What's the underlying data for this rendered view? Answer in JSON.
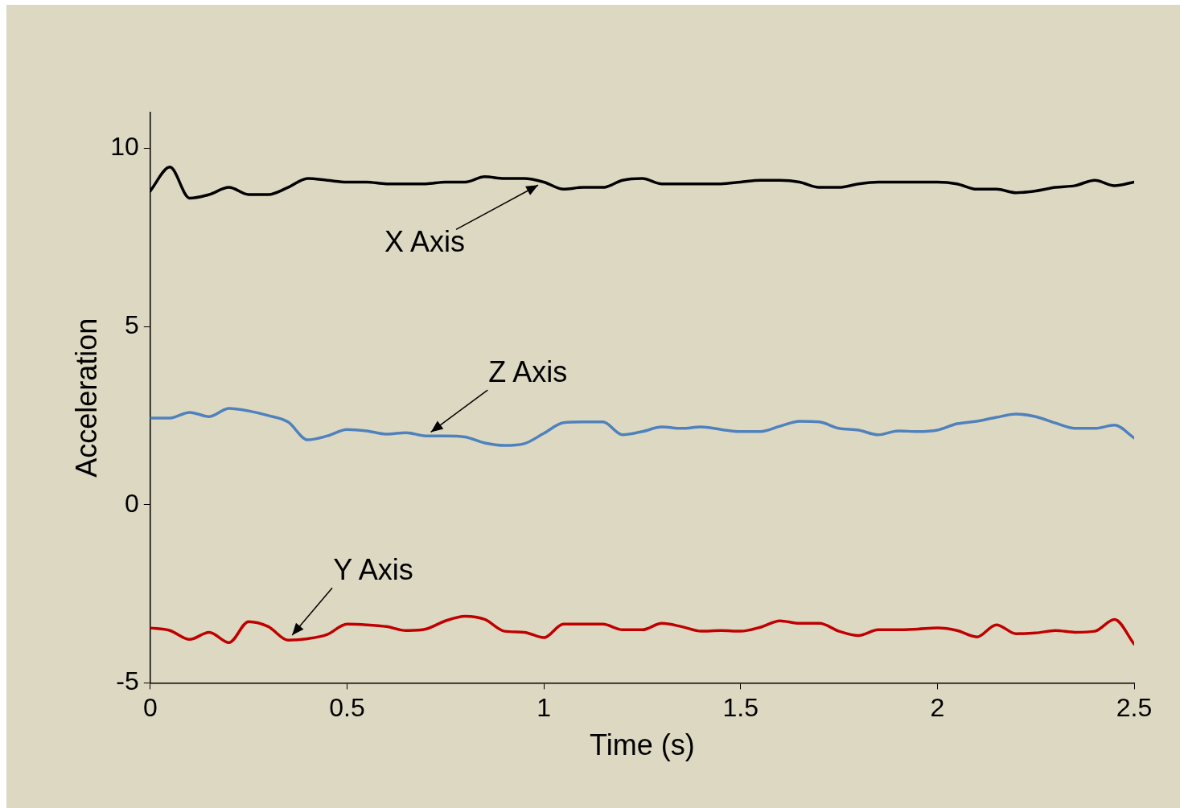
{
  "chart_data": {
    "type": "line",
    "xlabel": "Time (s)",
    "ylabel": "Acceleration",
    "x": [
      0,
      0.05,
      0.1,
      0.15,
      0.2,
      0.25,
      0.3,
      0.35,
      0.4,
      0.45,
      0.5,
      0.55,
      0.6,
      0.65,
      0.7,
      0.75,
      0.8,
      0.85,
      0.9,
      0.95,
      1,
      1.05,
      1.1,
      1.15,
      1.2,
      1.25,
      1.3,
      1.35,
      1.4,
      1.45,
      1.5,
      1.55,
      1.6,
      1.65,
      1.7,
      1.75,
      1.8,
      1.85,
      1.9,
      1.95,
      2,
      2.05,
      2.1,
      2.15,
      2.2,
      2.25,
      2.3,
      2.35,
      2.4,
      2.45,
      2.5
    ],
    "series": [
      {
        "color": "#000000",
        "values": [
          8.8,
          9.47,
          8.6,
          8.7,
          8.9,
          8.7,
          8.7,
          8.9,
          9.15,
          9.1,
          9.05,
          9.05,
          9.0,
          9.0,
          9.0,
          9.05,
          9.05,
          9.2,
          9.15,
          9.15,
          9.05,
          8.85,
          8.9,
          8.9,
          9.1,
          9.15,
          9.0,
          9.0,
          9.0,
          9.0,
          9.05,
          9.1,
          9.1,
          9.05,
          8.9,
          8.9,
          9.0,
          9.05,
          9.05,
          9.05,
          9.05,
          9.0,
          8.85,
          8.85,
          8.75,
          8.8,
          8.9,
          8.95,
          9.1,
          8.95,
          9.05
        ]
      },
      {
        "color": "#4f81bd",
        "values": [
          2.43,
          2.43,
          2.59,
          2.47,
          2.7,
          2.63,
          2.5,
          2.32,
          1.82,
          1.93,
          2.11,
          2.07,
          1.98,
          2.02,
          1.93,
          1.93,
          1.9,
          1.73,
          1.66,
          1.71,
          2.0,
          2.3,
          2.32,
          2.32,
          1.96,
          2.05,
          2.18,
          2.14,
          2.18,
          2.11,
          2.05,
          2.05,
          2.2,
          2.34,
          2.32,
          2.14,
          2.09,
          1.96,
          2.07,
          2.05,
          2.09,
          2.27,
          2.34,
          2.45,
          2.54,
          2.47,
          2.29,
          2.14,
          2.14,
          2.23,
          1.87
        ]
      },
      {
        "color": "#c00000",
        "values": [
          -3.46,
          -3.53,
          -3.78,
          -3.58,
          -3.87,
          -3.28,
          -3.42,
          -3.8,
          -3.76,
          -3.64,
          -3.35,
          -3.37,
          -3.42,
          -3.53,
          -3.49,
          -3.26,
          -3.13,
          -3.22,
          -3.55,
          -3.58,
          -3.73,
          -3.35,
          -3.35,
          -3.35,
          -3.51,
          -3.51,
          -3.33,
          -3.42,
          -3.55,
          -3.53,
          -3.55,
          -3.44,
          -3.26,
          -3.33,
          -3.33,
          -3.55,
          -3.67,
          -3.51,
          -3.51,
          -3.49,
          -3.46,
          -3.53,
          -3.71,
          -3.37,
          -3.62,
          -3.6,
          -3.53,
          -3.58,
          -3.55,
          -3.22,
          -3.91
        ]
      }
    ],
    "annotations": [
      {
        "text": "X Axis",
        "x": 1.0,
        "y": 9.05
      },
      {
        "text": "Z Axis",
        "x": 0.7,
        "y": 1.93
      },
      {
        "text": "Y Axis",
        "x": 0.35,
        "y": -3.8
      }
    ],
    "xlim": [
      0,
      2.5
    ],
    "xticks": [
      0,
      0.5,
      1,
      1.5,
      2,
      2.5
    ],
    "ylim": [
      -5,
      11
    ],
    "yticks": [
      -5,
      0,
      5,
      10
    ],
    "grid": false,
    "legend": false,
    "marker": "none",
    "line_style": "solid"
  }
}
